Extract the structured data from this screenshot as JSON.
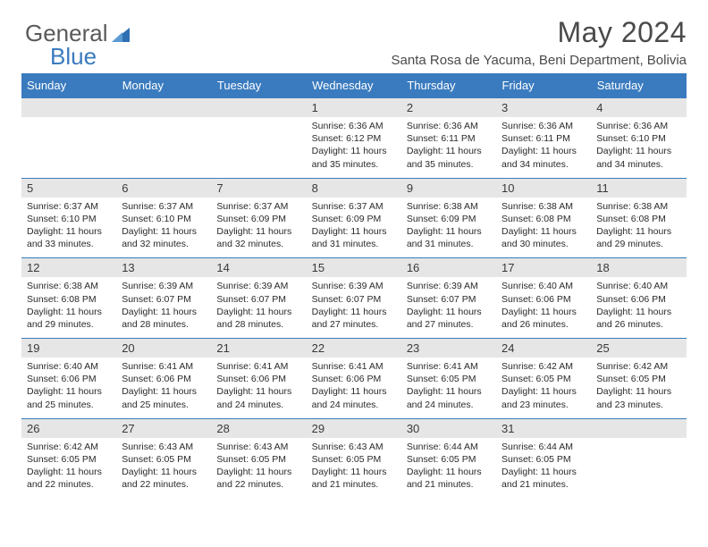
{
  "brand": {
    "part1": "General",
    "part2": "Blue"
  },
  "title": "May 2024",
  "location": "Santa Rosa de Yacuma, Beni Department, Bolivia",
  "colors": {
    "header_bg": "#3a7bbf",
    "header_text": "#ffffff",
    "daynum_bg": "#e6e6e6",
    "row_border": "#3a7bbf",
    "page_bg": "#ffffff",
    "text": "#2a2a2a",
    "title_text": "#4a4a4a"
  },
  "fonts": {
    "family": "Arial",
    "title_size_pt": 24,
    "location_size_pt": 11,
    "header_size_pt": 10,
    "cell_size_pt": 8
  },
  "days_of_week": [
    "Sunday",
    "Monday",
    "Tuesday",
    "Wednesday",
    "Thursday",
    "Friday",
    "Saturday"
  ],
  "grid": {
    "rows": 5,
    "cols": 7,
    "first_day_col": 3,
    "last_day": 31
  },
  "cells": [
    [
      null,
      null,
      null,
      {
        "n": "1",
        "sunrise": "6:36 AM",
        "sunset": "6:12 PM",
        "daylight": "11 hours and 35 minutes."
      },
      {
        "n": "2",
        "sunrise": "6:36 AM",
        "sunset": "6:11 PM",
        "daylight": "11 hours and 35 minutes."
      },
      {
        "n": "3",
        "sunrise": "6:36 AM",
        "sunset": "6:11 PM",
        "daylight": "11 hours and 34 minutes."
      },
      {
        "n": "4",
        "sunrise": "6:36 AM",
        "sunset": "6:10 PM",
        "daylight": "11 hours and 34 minutes."
      }
    ],
    [
      {
        "n": "5",
        "sunrise": "6:37 AM",
        "sunset": "6:10 PM",
        "daylight": "11 hours and 33 minutes."
      },
      {
        "n": "6",
        "sunrise": "6:37 AM",
        "sunset": "6:10 PM",
        "daylight": "11 hours and 32 minutes."
      },
      {
        "n": "7",
        "sunrise": "6:37 AM",
        "sunset": "6:09 PM",
        "daylight": "11 hours and 32 minutes."
      },
      {
        "n": "8",
        "sunrise": "6:37 AM",
        "sunset": "6:09 PM",
        "daylight": "11 hours and 31 minutes."
      },
      {
        "n": "9",
        "sunrise": "6:38 AM",
        "sunset": "6:09 PM",
        "daylight": "11 hours and 31 minutes."
      },
      {
        "n": "10",
        "sunrise": "6:38 AM",
        "sunset": "6:08 PM",
        "daylight": "11 hours and 30 minutes."
      },
      {
        "n": "11",
        "sunrise": "6:38 AM",
        "sunset": "6:08 PM",
        "daylight": "11 hours and 29 minutes."
      }
    ],
    [
      {
        "n": "12",
        "sunrise": "6:38 AM",
        "sunset": "6:08 PM",
        "daylight": "11 hours and 29 minutes."
      },
      {
        "n": "13",
        "sunrise": "6:39 AM",
        "sunset": "6:07 PM",
        "daylight": "11 hours and 28 minutes."
      },
      {
        "n": "14",
        "sunrise": "6:39 AM",
        "sunset": "6:07 PM",
        "daylight": "11 hours and 28 minutes."
      },
      {
        "n": "15",
        "sunrise": "6:39 AM",
        "sunset": "6:07 PM",
        "daylight": "11 hours and 27 minutes."
      },
      {
        "n": "16",
        "sunrise": "6:39 AM",
        "sunset": "6:07 PM",
        "daylight": "11 hours and 27 minutes."
      },
      {
        "n": "17",
        "sunrise": "6:40 AM",
        "sunset": "6:06 PM",
        "daylight": "11 hours and 26 minutes."
      },
      {
        "n": "18",
        "sunrise": "6:40 AM",
        "sunset": "6:06 PM",
        "daylight": "11 hours and 26 minutes."
      }
    ],
    [
      {
        "n": "19",
        "sunrise": "6:40 AM",
        "sunset": "6:06 PM",
        "daylight": "11 hours and 25 minutes."
      },
      {
        "n": "20",
        "sunrise": "6:41 AM",
        "sunset": "6:06 PM",
        "daylight": "11 hours and 25 minutes."
      },
      {
        "n": "21",
        "sunrise": "6:41 AM",
        "sunset": "6:06 PM",
        "daylight": "11 hours and 24 minutes."
      },
      {
        "n": "22",
        "sunrise": "6:41 AM",
        "sunset": "6:06 PM",
        "daylight": "11 hours and 24 minutes."
      },
      {
        "n": "23",
        "sunrise": "6:41 AM",
        "sunset": "6:05 PM",
        "daylight": "11 hours and 24 minutes."
      },
      {
        "n": "24",
        "sunrise": "6:42 AM",
        "sunset": "6:05 PM",
        "daylight": "11 hours and 23 minutes."
      },
      {
        "n": "25",
        "sunrise": "6:42 AM",
        "sunset": "6:05 PM",
        "daylight": "11 hours and 23 minutes."
      }
    ],
    [
      {
        "n": "26",
        "sunrise": "6:42 AM",
        "sunset": "6:05 PM",
        "daylight": "11 hours and 22 minutes."
      },
      {
        "n": "27",
        "sunrise": "6:43 AM",
        "sunset": "6:05 PM",
        "daylight": "11 hours and 22 minutes."
      },
      {
        "n": "28",
        "sunrise": "6:43 AM",
        "sunset": "6:05 PM",
        "daylight": "11 hours and 22 minutes."
      },
      {
        "n": "29",
        "sunrise": "6:43 AM",
        "sunset": "6:05 PM",
        "daylight": "11 hours and 21 minutes."
      },
      {
        "n": "30",
        "sunrise": "6:44 AM",
        "sunset": "6:05 PM",
        "daylight": "11 hours and 21 minutes."
      },
      {
        "n": "31",
        "sunrise": "6:44 AM",
        "sunset": "6:05 PM",
        "daylight": "11 hours and 21 minutes."
      },
      null
    ]
  ],
  "labels": {
    "sunrise": "Sunrise:",
    "sunset": "Sunset:",
    "daylight": "Daylight:"
  }
}
